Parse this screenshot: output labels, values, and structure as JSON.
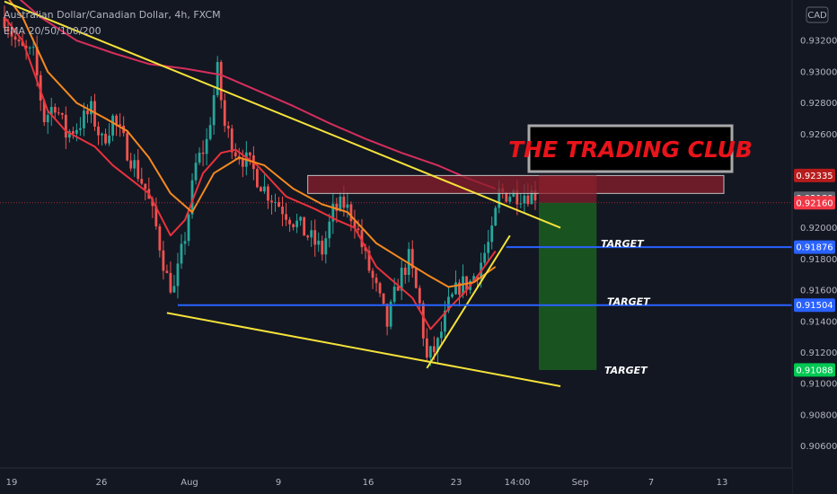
{
  "header": {
    "symbol": "Australian Dollar/Canadian Dollar, 4h, FXCM",
    "indicator": "EMA 20/50/100/200"
  },
  "currency_badge": "CAD",
  "logo_text": "THE TRADING CLUB",
  "colors": {
    "background": "#131722",
    "bull": "#26a69a",
    "bear": "#ef5350",
    "ema_fast": "#e8323c",
    "ema_mid": "#f5891f",
    "ema_slow": "#d62e5c",
    "trendline": "#f5e23a",
    "target_line": "#2962ff",
    "zone": "#8b1e2b",
    "profit_box": "#1b5e20",
    "loss_box": "#8b1e2b"
  },
  "chart_data": {
    "type": "candlestick",
    "instrument": "AUDCAD",
    "timeframe": "4h",
    "source": "FXCM",
    "ylim": [
      0.9046,
      0.9346
    ],
    "y_ticks": [
      "0.93200",
      "0.93000",
      "0.92800",
      "0.92600",
      "0.92000",
      "0.91800",
      "0.91600",
      "0.91400",
      "0.91200",
      "0.91000",
      "0.90800",
      "0.90600"
    ],
    "x_ticks": [
      "19",
      "26",
      "Aug",
      "9",
      "16",
      "23",
      "14:00",
      "Sep",
      "7",
      "13"
    ],
    "price_labels": [
      {
        "text": "0.92335",
        "value": 0.92335,
        "color": "#b71c1c"
      },
      {
        "text": "0.92189",
        "value": 0.92189,
        "color": "#5d606b"
      },
      {
        "text": "0.92160",
        "value": 0.9216,
        "color": "#f23645"
      },
      {
        "text": "0.91876",
        "value": 0.91876,
        "color": "#2962ff"
      },
      {
        "text": "0.91504",
        "value": 0.91504,
        "color": "#2962ff"
      },
      {
        "text": "0.91088",
        "value": 0.91088,
        "color": "#00c853"
      }
    ],
    "targets": [
      {
        "label": "TARGET",
        "price": 0.91876
      },
      {
        "label": "TARGET",
        "price": 0.91504
      },
      {
        "label": "TARGET",
        "price": 0.91088
      }
    ],
    "resistance_zone": {
      "top": 0.92335,
      "bottom": 0.9222
    },
    "short_position": {
      "entry": 0.9216,
      "stop": 0.92335,
      "target": 0.91088
    },
    "trendlines": [
      {
        "name": "upper-channel",
        "points": [
          [
            0,
            0.9345
          ],
          [
            154,
            0.92
          ]
        ]
      },
      {
        "name": "lower-channel",
        "points": [
          [
            45,
            0.91454
          ],
          [
            154,
            0.90984
          ]
        ]
      },
      {
        "name": "rising-support",
        "points": [
          [
            117,
            0.911
          ],
          [
            140,
            0.9195
          ]
        ]
      }
    ],
    "emas": [
      {
        "name": "EMA 20",
        "key": "ema_fast",
        "points": [
          [
            0,
            0.9335
          ],
          [
            5,
            0.932
          ],
          [
            12,
            0.9275
          ],
          [
            17,
            0.9262
          ],
          [
            25,
            0.9252
          ],
          [
            30,
            0.924
          ],
          [
            40,
            0.9222
          ],
          [
            46,
            0.9195
          ],
          [
            50,
            0.9205
          ],
          [
            55,
            0.9235
          ],
          [
            60,
            0.9248
          ],
          [
            64,
            0.925
          ],
          [
            70,
            0.924
          ],
          [
            78,
            0.922
          ],
          [
            86,
            0.9212
          ],
          [
            92,
            0.9205
          ],
          [
            97,
            0.92
          ],
          [
            103,
            0.9175
          ],
          [
            108,
            0.9165
          ],
          [
            113,
            0.9155
          ],
          [
            118,
            0.9135
          ],
          [
            123,
            0.9148
          ],
          [
            128,
            0.916
          ],
          [
            132,
            0.9172
          ],
          [
            136,
            0.9185
          ]
        ]
      },
      {
        "name": "EMA 50",
        "key": "ema_mid",
        "points": [
          [
            0,
            0.935
          ],
          [
            5,
            0.9335
          ],
          [
            12,
            0.93
          ],
          [
            20,
            0.928
          ],
          [
            28,
            0.927
          ],
          [
            34,
            0.9262
          ],
          [
            40,
            0.9245
          ],
          [
            46,
            0.9222
          ],
          [
            52,
            0.921
          ],
          [
            58,
            0.9235
          ],
          [
            65,
            0.9245
          ],
          [
            72,
            0.924
          ],
          [
            80,
            0.9225
          ],
          [
            88,
            0.9215
          ],
          [
            95,
            0.921
          ],
          [
            103,
            0.919
          ],
          [
            110,
            0.918
          ],
          [
            117,
            0.917
          ],
          [
            123,
            0.9162
          ],
          [
            130,
            0.9165
          ],
          [
            136,
            0.9175
          ]
        ]
      },
      {
        "name": "EMA 200",
        "key": "ema_slow",
        "points": [
          [
            0,
            0.9355
          ],
          [
            10,
            0.9335
          ],
          [
            20,
            0.932
          ],
          [
            30,
            0.9312
          ],
          [
            40,
            0.9305
          ],
          [
            50,
            0.9302
          ],
          [
            60,
            0.9298
          ],
          [
            70,
            0.9288
          ],
          [
            80,
            0.9278
          ],
          [
            90,
            0.9267
          ],
          [
            100,
            0.9257
          ],
          [
            110,
            0.9248
          ],
          [
            120,
            0.924
          ],
          [
            128,
            0.9232
          ],
          [
            136,
            0.9225
          ]
        ]
      }
    ],
    "anchors": [
      [
        0,
        0.9335
      ],
      [
        4,
        0.9315
      ],
      [
        8,
        0.931
      ],
      [
        11,
        0.927
      ],
      [
        14,
        0.928
      ],
      [
        17,
        0.926
      ],
      [
        20,
        0.9265
      ],
      [
        24,
        0.9275
      ],
      [
        27,
        0.9255
      ],
      [
        30,
        0.927
      ],
      [
        33,
        0.9255
      ],
      [
        36,
        0.924
      ],
      [
        39,
        0.9225
      ],
      [
        42,
        0.92
      ],
      [
        45,
        0.9168
      ],
      [
        47,
        0.916
      ],
      [
        50,
        0.9195
      ],
      [
        53,
        0.924
      ],
      [
        56,
        0.9255
      ],
      [
        59,
        0.93
      ],
      [
        61,
        0.9265
      ],
      [
        64,
        0.925
      ],
      [
        68,
        0.924
      ],
      [
        72,
        0.9225
      ],
      [
        76,
        0.9215
      ],
      [
        80,
        0.9205
      ],
      [
        84,
        0.9195
      ],
      [
        88,
        0.9185
      ],
      [
        91,
        0.921
      ],
      [
        94,
        0.9215
      ],
      [
        97,
        0.9205
      ],
      [
        100,
        0.918
      ],
      [
        103,
        0.916
      ],
      [
        106,
        0.9138
      ],
      [
        109,
        0.9165
      ],
      [
        112,
        0.918
      ],
      [
        115,
        0.915
      ],
      [
        117,
        0.9115
      ],
      [
        120,
        0.9125
      ],
      [
        123,
        0.915
      ],
      [
        126,
        0.9163
      ],
      [
        129,
        0.9165
      ],
      [
        132,
        0.9178
      ],
      [
        135,
        0.9195
      ],
      [
        137,
        0.9222
      ]
    ]
  }
}
